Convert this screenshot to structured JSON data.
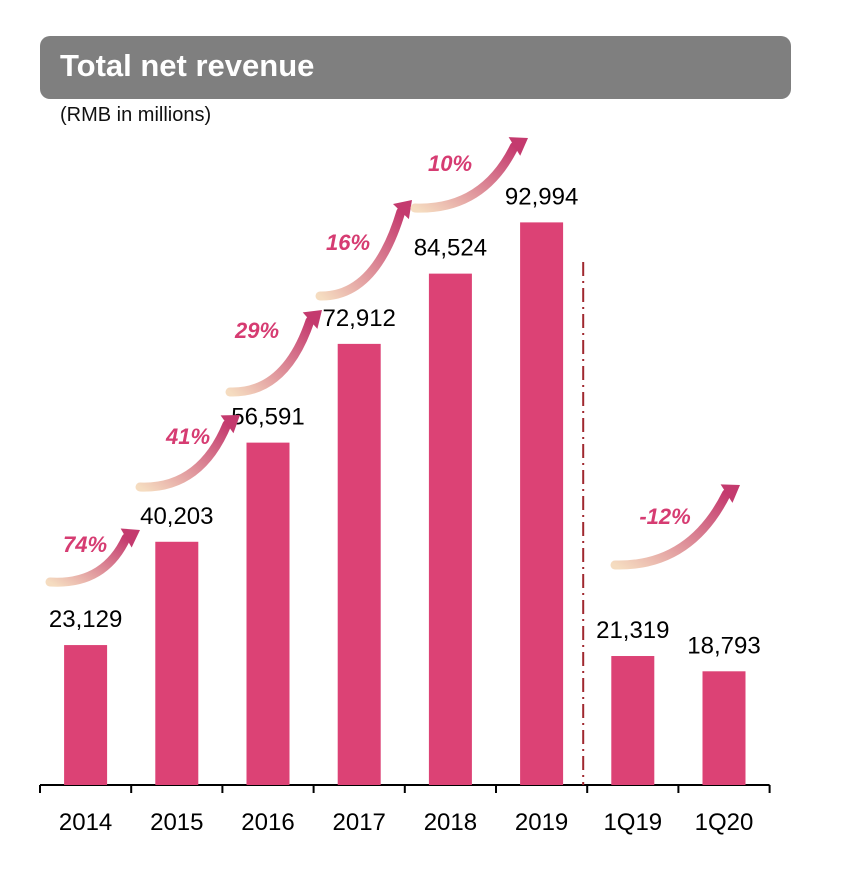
{
  "chart_data": {
    "type": "bar",
    "title": "Total net revenue",
    "subtitle": "(RMB in millions)",
    "categories": [
      "2014",
      "2015",
      "2016",
      "2017",
      "2018",
      "2019",
      "1Q19",
      "1Q20"
    ],
    "values": [
      23129,
      40203,
      56591,
      72912,
      84524,
      92994,
      21319,
      18793
    ],
    "data_labels": [
      "23,129",
      "40,203",
      "56,591",
      "72,912",
      "84,524",
      "92,994",
      "21,319",
      "18,793"
    ],
    "growth_annotations": [
      "74%",
      "41%",
      "29%",
      "16%",
      "10%",
      "-12%"
    ],
    "ylim": [
      0,
      100000
    ],
    "grid": false,
    "legend": "none",
    "separator_between": [
      "2019",
      "1Q19"
    ],
    "colors": {
      "bar": "#dc4275",
      "header": "#7f7f7f",
      "growth_text": "#d63c72",
      "arrow_start": "#f5dcc0",
      "arrow_end": "#c43a6e",
      "separator": "#a0282f"
    }
  }
}
